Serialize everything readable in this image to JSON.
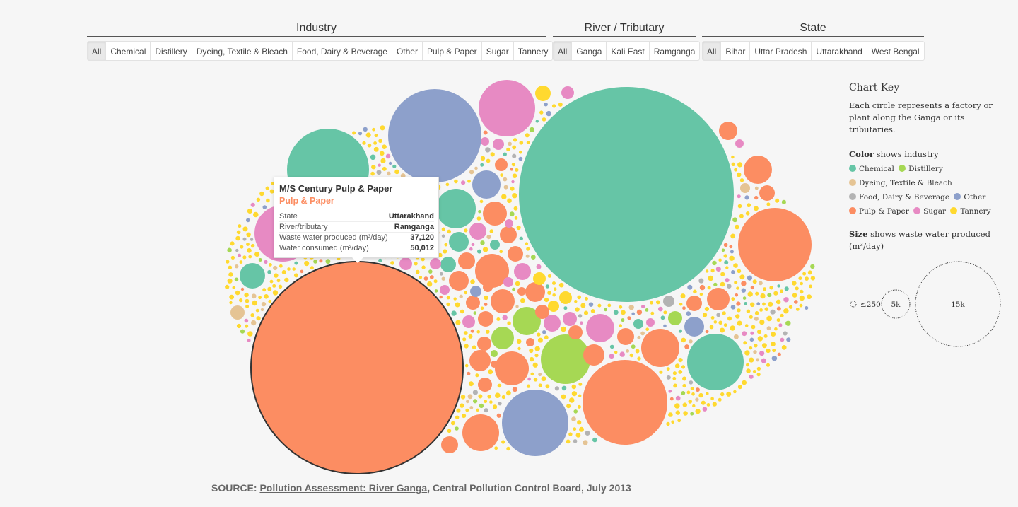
{
  "filters": {
    "industry": {
      "title": "Industry",
      "options": [
        "All",
        "Chemical",
        "Distillery",
        "Dyeing, Textile & Bleach",
        "Food, Dairy & Beverage",
        "Other",
        "Pulp & Paper",
        "Sugar",
        "Tannery"
      ],
      "selected": "All"
    },
    "river": {
      "title": "River / Tributary",
      "options": [
        "All",
        "Ganga",
        "Kali East",
        "Ramganga"
      ],
      "selected": "All"
    },
    "state": {
      "title": "State",
      "options": [
        "All",
        "Bihar",
        "Uttar Pradesh",
        "Uttarakhand",
        "West Bengal"
      ],
      "selected": "All"
    }
  },
  "colors": {
    "Chemical": "#66c5a6",
    "Distillery": "#a6d854",
    "Dyeing, Textile & Bleach": "#e5c494",
    "Food, Dairy & Beverage": "#b3b3b3",
    "Other": "#8da0cb",
    "Pulp & Paper": "#fc8d62",
    "Sugar": "#e78ac3",
    "Tannery": "#ffd92f"
  },
  "tooltip": {
    "name": "M/S Century Pulp & Paper",
    "industry": "Pulp & Paper",
    "rows": [
      {
        "label": "State",
        "value": "Uttarakhand"
      },
      {
        "label": "River/tributary",
        "value": "Ramganga"
      },
      {
        "label": "Waste water produced (m³/day)",
        "value": "37,120"
      },
      {
        "label": "Water consumed (m³/day)",
        "value": "50,012"
      }
    ]
  },
  "key": {
    "title": "Chart Key",
    "description": "Each circle represents a factory or plant along the Ganga or its tributaries.",
    "color_bold": "Color",
    "color_text": " shows industry",
    "legend": [
      {
        "label": "Chemical",
        "color": "#66c5a6"
      },
      {
        "label": "Distillery",
        "color": "#a6d854"
      },
      {
        "label": "Dyeing, Textile & Bleach",
        "color": "#e5c494"
      },
      {
        "label": "Food, Dairy & Beverage",
        "color": "#b3b3b3"
      },
      {
        "label": "Other",
        "color": "#8da0cb"
      },
      {
        "label": "Pulp & Paper",
        "color": "#fc8d62"
      },
      {
        "label": "Sugar",
        "color": "#e78ac3"
      },
      {
        "label": "Tannery",
        "color": "#ffd92f"
      }
    ],
    "size_bold": "Size",
    "size_text": " shows waste water produced (m³/day)",
    "size_labels": [
      "≤250",
      "5k",
      "15k"
    ]
  },
  "source": {
    "prefix": "SOURCE: ",
    "link": "Pollution Assessment: River Ganga",
    "suffix": ", Central Pollution Control Board, July 2013"
  },
  "chart_data": {
    "type": "bubble-pack",
    "encoding": {
      "color": "industry",
      "size": "waste water produced (m³/day)"
    },
    "highlighted": {
      "name": "M/S Century Pulp & Paper",
      "industry": "Pulp & Paper",
      "state": "Uttarakhand",
      "river": "Ramganga",
      "waste_water_m3_day": 37120,
      "water_consumed_m3_day": 50012
    }
  }
}
